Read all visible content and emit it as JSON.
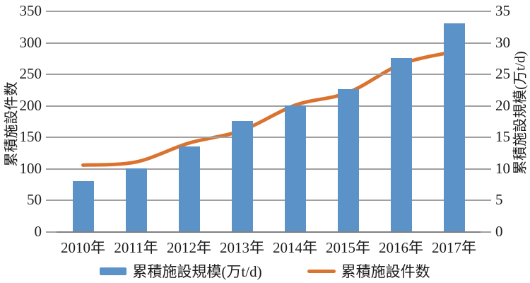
{
  "chart_data": {
    "type": "bar+line combo",
    "categories": [
      "2010年",
      "2011年",
      "2012年",
      "2013年",
      "2014年",
      "2015年",
      "2016年",
      "2017年"
    ],
    "series": [
      {
        "name": "累積施設規模(万t/d)",
        "type": "bar",
        "axis": "right",
        "values": [
          8,
          10,
          13.5,
          17.5,
          20,
          22.5,
          27.5,
          33
        ],
        "color": "#5b93c9"
      },
      {
        "name": "累積施設件数",
        "type": "line",
        "axis": "left",
        "values": [
          105,
          110,
          140,
          160,
          200,
          220,
          265,
          285
        ],
        "color": "#db7330"
      }
    ],
    "left_axis": {
      "title": "累積施設件数",
      "min": 0,
      "max": 350,
      "step": 50,
      "ticks": [
        0,
        50,
        100,
        150,
        200,
        250,
        300,
        350
      ]
    },
    "right_axis": {
      "title": "累積施設規模(万t/d)",
      "min": 0,
      "max": 35,
      "step": 5,
      "ticks": [
        0,
        5,
        10,
        15,
        20,
        25,
        30,
        35
      ]
    },
    "grid": true,
    "legend_position": "bottom",
    "title": ""
  },
  "colors": {
    "bar": "#5b93c9",
    "line": "#db7330",
    "gridline": "#a0a0a0",
    "axis_line": "#808080",
    "text": "#1c1c1c",
    "background": "#ffffff"
  }
}
